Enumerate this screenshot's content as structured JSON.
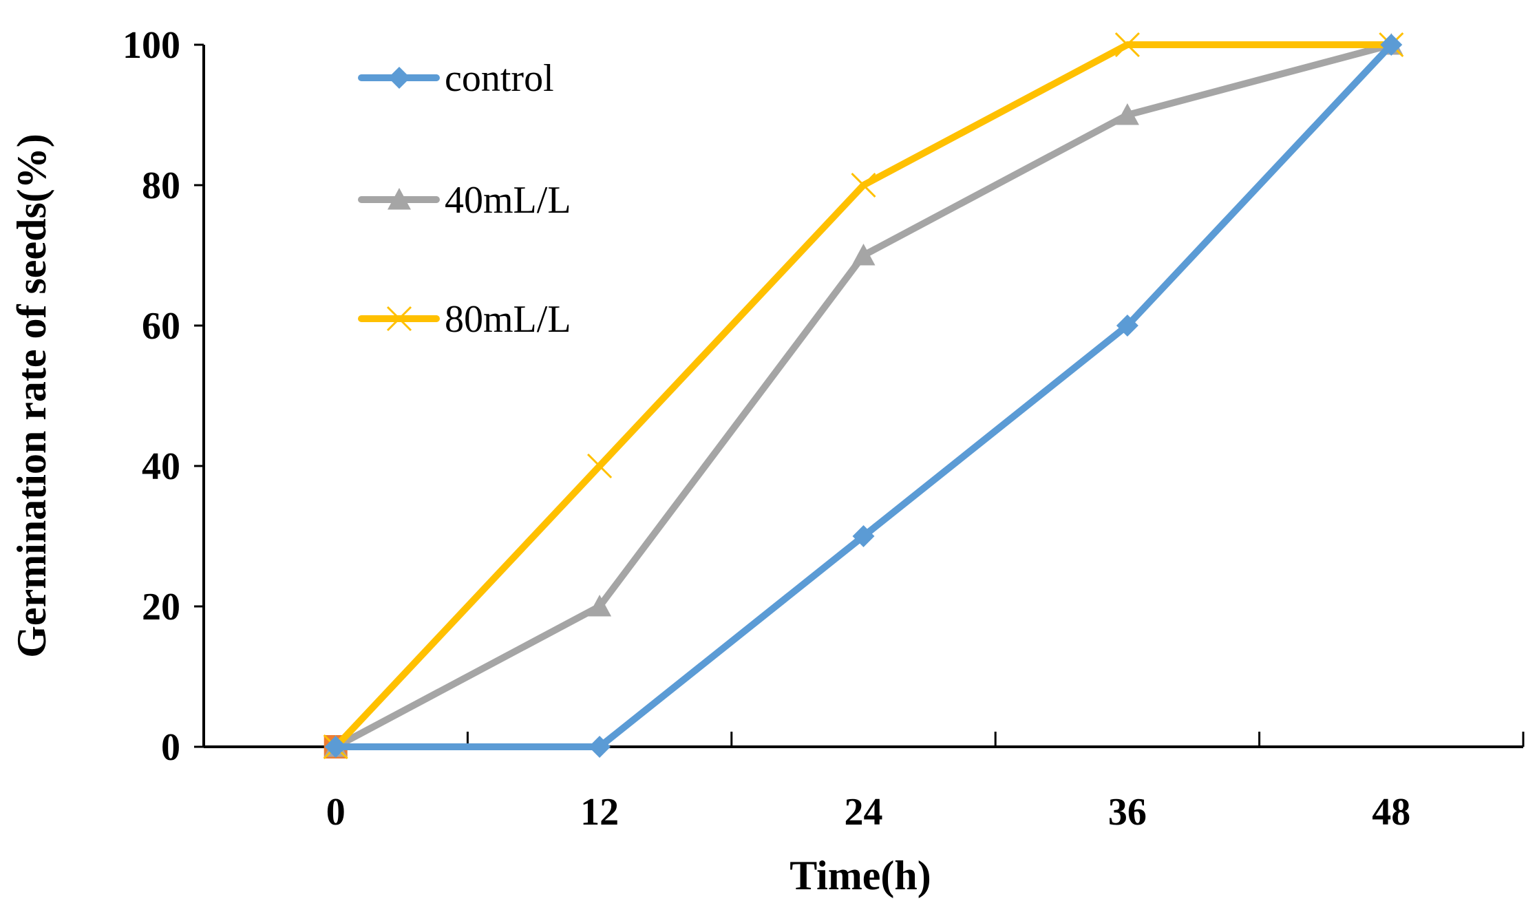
{
  "chart_data": {
    "type": "line",
    "title": "",
    "xlabel": "Time(h)",
    "ylabel": "Germination rate of  seeds(%)",
    "categories": [
      "0",
      "12",
      "24",
      "36",
      "48"
    ],
    "x": [
      0,
      12,
      24,
      36,
      48
    ],
    "ylim": [
      0,
      100
    ],
    "yticks": [
      "0",
      "20",
      "40",
      "60",
      "80",
      "100"
    ],
    "grid": false,
    "legend_position": "top-left",
    "series": [
      {
        "name": "control",
        "values": [
          0,
          0,
          30,
          60,
          100
        ],
        "color": "#5B9BD5",
        "marker": "diamond"
      },
      {
        "name": "40mL/L",
        "values": [
          0,
          20,
          70,
          90,
          100
        ],
        "color": "#A5A5A5",
        "marker": "triangle"
      },
      {
        "name": "80mL/L",
        "values": [
          0,
          40,
          80,
          100,
          100
        ],
        "color": "#FFC000",
        "marker": "x"
      }
    ],
    "origin_marker_color": "#ED7D31"
  }
}
